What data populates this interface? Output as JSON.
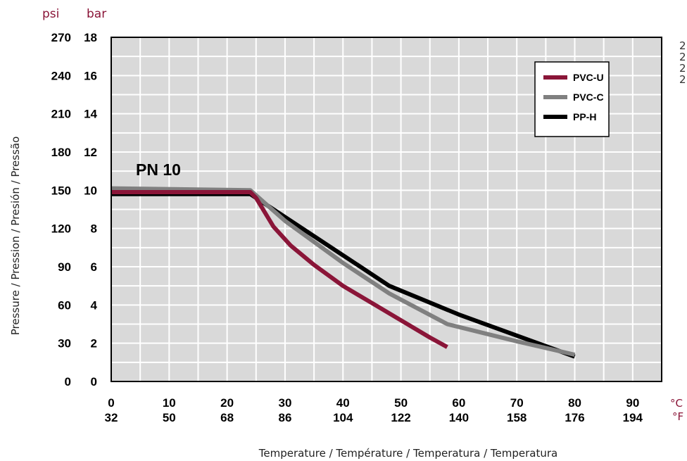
{
  "chart_data": {
    "type": "line",
    "pressure_class": "PN 10",
    "y_units": {
      "psi": "psi",
      "bar": "bar"
    },
    "xlabel": "Temperature / Température / Temperatura / Temperatura",
    "ylabel": "Pressure / Pression / Presión / Pressão",
    "x_unit_c": "°C",
    "x_unit_f": "°F",
    "x_ticks": [
      {
        "c": "0",
        "f": "32"
      },
      {
        "c": "10",
        "f": "50"
      },
      {
        "c": "20",
        "f": "68"
      },
      {
        "c": "30",
        "f": "86"
      },
      {
        "c": "40",
        "f": "104"
      },
      {
        "c": "50",
        "f": "122"
      },
      {
        "c": "60",
        "f": "140"
      },
      {
        "c": "70",
        "f": "158"
      },
      {
        "c": "80",
        "f": "176"
      },
      {
        "c": "90",
        "f": "194"
      }
    ],
    "y_ticks": [
      {
        "bar": "0",
        "psi": "0"
      },
      {
        "bar": "2",
        "psi": "30"
      },
      {
        "bar": "4",
        "psi": "60"
      },
      {
        "bar": "6",
        "psi": "90"
      },
      {
        "bar": "8",
        "psi": "120"
      },
      {
        "bar": "10",
        "psi": "150"
      },
      {
        "bar": "12",
        "psi": "180"
      },
      {
        "bar": "14",
        "psi": "210"
      },
      {
        "bar": "16",
        "psi": "240"
      },
      {
        "bar": "18",
        "psi": "270"
      }
    ],
    "xlim": [
      0,
      95
    ],
    "ylim": [
      0,
      18
    ],
    "grid": true,
    "legend_position": "top-right",
    "series": [
      {
        "name": "PP-H",
        "color": "#000000",
        "points": [
          [
            0,
            9.8
          ],
          [
            24,
            9.8
          ],
          [
            30,
            8.6
          ],
          [
            40,
            6.6
          ],
          [
            48,
            5.0
          ],
          [
            60,
            3.5
          ],
          [
            80,
            1.3
          ]
        ]
      },
      {
        "name": "PVC-C",
        "color": "#808080",
        "points": [
          [
            0,
            10.1
          ],
          [
            24,
            10.0
          ],
          [
            30,
            8.4
          ],
          [
            40,
            6.2
          ],
          [
            48,
            4.6
          ],
          [
            58,
            3.0
          ],
          [
            70,
            2.1
          ],
          [
            80,
            1.4
          ]
        ]
      },
      {
        "name": "PVC-U",
        "color": "#8a1538",
        "points": [
          [
            0,
            9.9
          ],
          [
            24,
            9.9
          ],
          [
            25,
            9.6
          ],
          [
            28,
            8.1
          ],
          [
            31,
            7.1
          ],
          [
            35,
            6.1
          ],
          [
            40,
            5.0
          ],
          [
            45,
            4.1
          ],
          [
            50,
            3.2
          ],
          [
            55,
            2.3
          ],
          [
            58,
            1.8
          ]
        ]
      }
    ],
    "legend_order": [
      "PVC-U",
      "PVC-C",
      "PP-H"
    ]
  },
  "right_edge_text": [
    "2",
    "2",
    "2",
    "2"
  ]
}
